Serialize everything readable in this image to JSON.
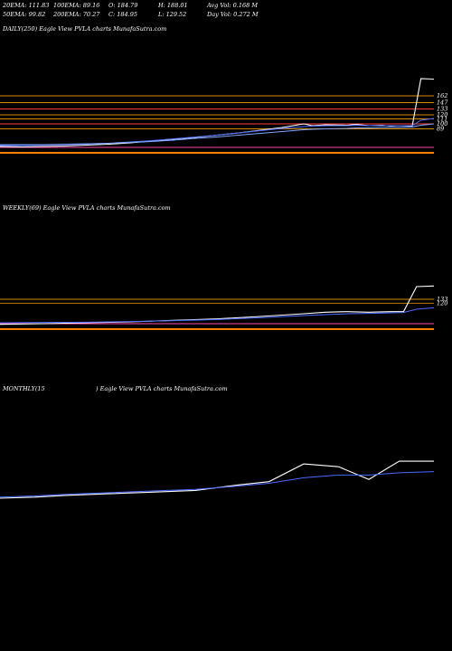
{
  "header": {
    "row1": [
      "20EMA: 111.83",
      "100EMA: 89.16",
      "O: 184.79",
      "H: 188.01",
      "Avg Vol: 0.168  M"
    ],
    "row2": [
      "50EMA: 99.82",
      "200EMA: 70.27",
      "C: 184.95",
      "L: 129.52",
      "Day Vol: 0.272  M"
    ]
  },
  "panels": {
    "daily": {
      "label": "DAILY(250) Eagle   View  PVLA charts MunafaSutra.com"
    },
    "weekly": {
      "label": "WEEKLY(69) Eagle   View  PVLA charts MunafaSutra.com"
    },
    "monthly": {
      "label_left": "MONTHLY(15",
      "label_right": ") Eagle   View  PVLA charts MunafaSutra.com"
    }
  },
  "chart_data": [
    {
      "type": "line",
      "name": "daily",
      "x": [
        0,
        5,
        10,
        15,
        20,
        25,
        30,
        35,
        40,
        45,
        50,
        55,
        60,
        65,
        70,
        72,
        75,
        80,
        82,
        85,
        88,
        90,
        92,
        95,
        97,
        100
      ],
      "series": [
        {
          "name": "price",
          "values": [
            50,
            49,
            50,
            51,
            53,
            55,
            58,
            62,
            66,
            70,
            75,
            80,
            86,
            92,
            100,
            96,
            98,
            97,
            99,
            96,
            97,
            95,
            96,
            95,
            200,
            199
          ]
        },
        {
          "name": "20EMA",
          "values": [
            52,
            52,
            53,
            54,
            55,
            57,
            60,
            63,
            67,
            71,
            75,
            80,
            85,
            90,
            94,
            95,
            96,
            96,
            97,
            96,
            96,
            96,
            96,
            96,
            108,
            112
          ]
        },
        {
          "name": "50EMA",
          "values": [
            54,
            54,
            54,
            55,
            56,
            57,
            59,
            61,
            64,
            68,
            71,
            75,
            79,
            83,
            87,
            88,
            89,
            90,
            91,
            91,
            92,
            92,
            92,
            93,
            97,
            100
          ]
        }
      ],
      "price_levels": [
        162,
        147,
        133,
        120,
        111,
        100,
        89
      ],
      "ylim": [
        40,
        220
      ]
    },
    {
      "type": "line",
      "name": "weekly",
      "x": [
        0,
        10,
        20,
        30,
        40,
        50,
        60,
        70,
        75,
        80,
        85,
        90,
        93,
        96,
        100
      ],
      "series": [
        {
          "name": "price",
          "values": [
            50,
            52,
            55,
            58,
            63,
            68,
            76,
            85,
            90,
            92,
            90,
            92,
            92,
            175,
            177
          ]
        },
        {
          "name": "20EMA",
          "values": [
            55,
            56,
            57,
            59,
            62,
            66,
            72,
            79,
            82,
            85,
            86,
            88,
            89,
            100,
            105
          ]
        }
      ],
      "price_levels": [
        133,
        120
      ],
      "ylim": [
        40,
        220
      ]
    },
    {
      "type": "line",
      "name": "monthly",
      "x": [
        0,
        8,
        15,
        25,
        35,
        45,
        55,
        62,
        70,
        78,
        85,
        92,
        100
      ],
      "series": [
        {
          "name": "price",
          "values": [
            58,
            60,
            63,
            66,
            69,
            72,
            82,
            88,
            120,
            115,
            92,
            125,
            125
          ]
        },
        {
          "name": "EMA",
          "values": [
            60,
            62,
            65,
            68,
            71,
            74,
            80,
            85,
            95,
            100,
            100,
            104,
            106
          ]
        }
      ],
      "ylim": [
        40,
        220
      ]
    }
  ]
}
